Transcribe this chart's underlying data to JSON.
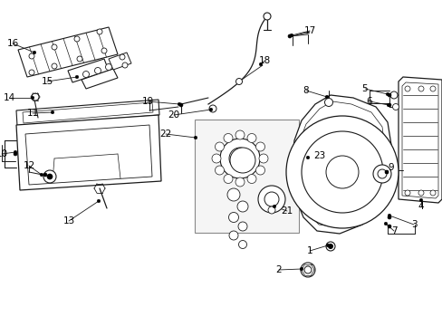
{
  "bg_color": "#ffffff",
  "line_color": "#1a1a1a",
  "fig_w": 4.89,
  "fig_h": 3.6,
  "dpi": 100
}
